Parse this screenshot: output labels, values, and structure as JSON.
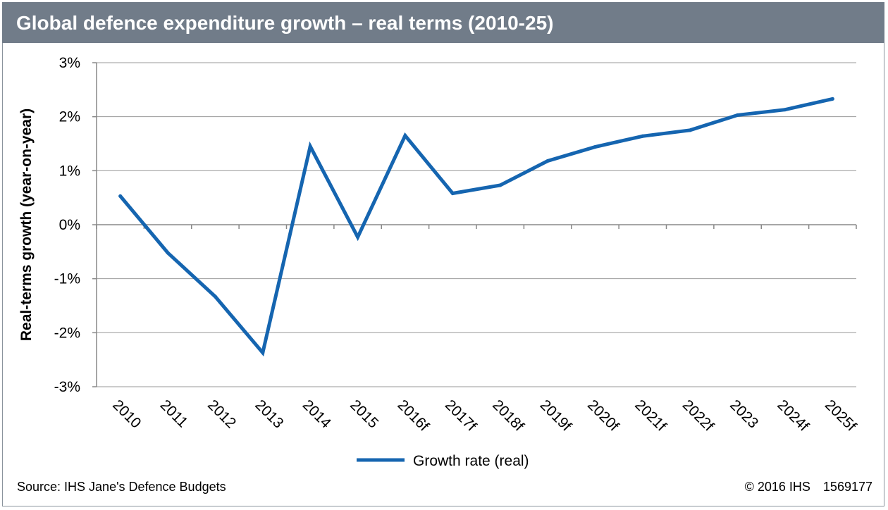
{
  "header": {
    "title": "Global defence expenditure growth – real terms (2010-25)"
  },
  "footer": {
    "source": "Source: IHS Jane's Defence Budgets",
    "copyright": "© 2016 IHS",
    "id": "1569177"
  },
  "colors": {
    "title_bar": "#717c89",
    "series_line": "#1565b0",
    "grid": "#999999"
  },
  "chart_data": {
    "type": "line",
    "title": "Global defence expenditure growth – real terms (2010-25)",
    "ylabel": "Real-terms growth (year-on-year)",
    "xlabel": "",
    "categories": [
      "2010",
      "2011",
      "2012",
      "2013",
      "2014",
      "2015",
      "2016f",
      "2017f",
      "2018f",
      "2019f",
      "2020f",
      "2021f",
      "2022f",
      "2023",
      "2024f",
      "2025f"
    ],
    "series": [
      {
        "name": "Growth rate (real)",
        "values": [
          0.53,
          -0.52,
          -1.33,
          -2.37,
          1.45,
          -0.23,
          1.65,
          0.58,
          0.73,
          1.18,
          1.44,
          1.64,
          1.75,
          2.03,
          2.13,
          2.33
        ]
      }
    ],
    "ylim": [
      -3,
      3
    ],
    "yticks": [
      3,
      2,
      1,
      0,
      -1,
      -2,
      -3
    ],
    "ytick_labels": [
      "3%",
      "2%",
      "1%",
      "0%",
      "-1%",
      "-2%",
      "-3%"
    ],
    "grid": "horizontal",
    "legend": "bottom-center"
  }
}
